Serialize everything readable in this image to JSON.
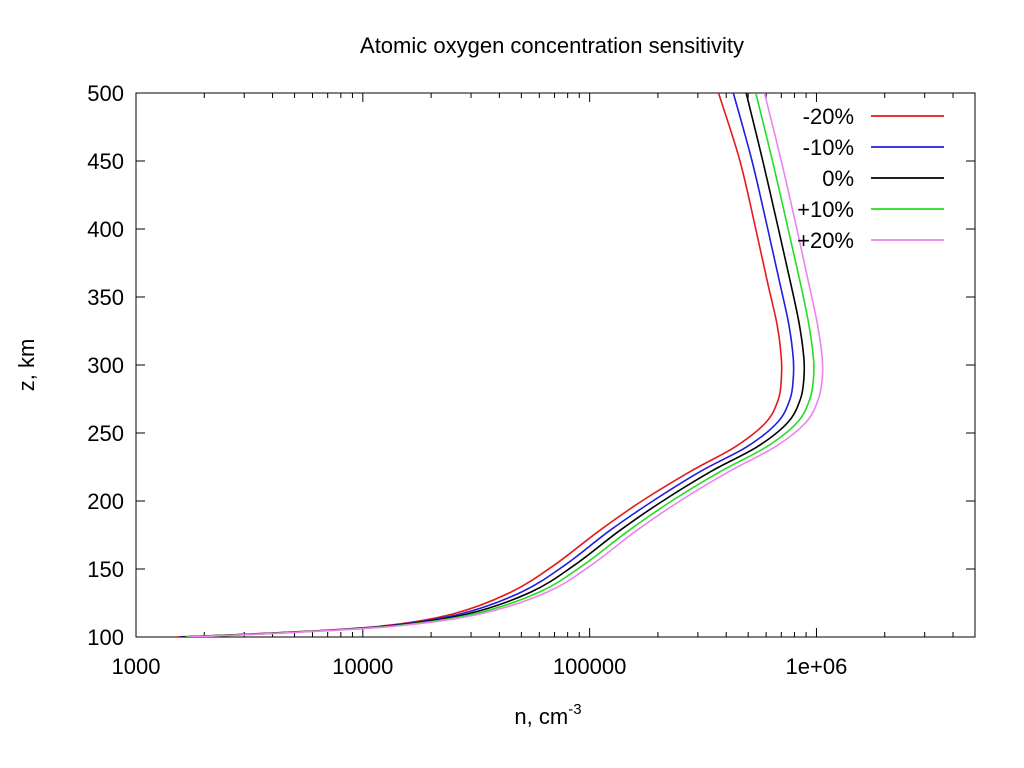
{
  "chart_data": {
    "type": "line",
    "title": "Atomic oxygen concentration sensitivity",
    "xlabel": "n, cm",
    "xlabel_sup": "-3",
    "ylabel": "z, km",
    "x_scale": "log",
    "xlim": [
      1000,
      5000000
    ],
    "ylim": [
      100,
      500
    ],
    "x_ticks": [
      {
        "value": 1000,
        "label": "1000"
      },
      {
        "value": 10000,
        "label": "10000"
      },
      {
        "value": 100000,
        "label": "100000"
      },
      {
        "value": 1000000,
        "label": "1e+06"
      }
    ],
    "y_ticks": [
      {
        "value": 100,
        "label": "100"
      },
      {
        "value": 150,
        "label": "150"
      },
      {
        "value": 200,
        "label": "200"
      },
      {
        "value": 250,
        "label": "250"
      },
      {
        "value": 300,
        "label": "300"
      },
      {
        "value": 350,
        "label": "350"
      },
      {
        "value": 400,
        "label": "400"
      },
      {
        "value": 450,
        "label": "450"
      },
      {
        "value": 500,
        "label": "500"
      }
    ],
    "grid": false,
    "legend_position": "top-right",
    "series": [
      {
        "name": "-20%",
        "color": "#e41a1c",
        "points": [
          [
            1500,
            100
          ],
          [
            4000,
            103
          ],
          [
            12000,
            108
          ],
          [
            25000,
            117
          ],
          [
            45000,
            133
          ],
          [
            70000,
            153
          ],
          [
            110000,
            178
          ],
          [
            170000,
            200
          ],
          [
            280000,
            222
          ],
          [
            440000,
            240
          ],
          [
            600000,
            258
          ],
          [
            680000,
            275
          ],
          [
            700000,
            290
          ],
          [
            700000,
            305
          ],
          [
            670000,
            330
          ],
          [
            610000,
            360
          ],
          [
            540000,
            400
          ],
          [
            460000,
            450
          ],
          [
            370000,
            500
          ]
        ]
      },
      {
        "name": "-10%",
        "color": "#1f1fdf",
        "points": [
          [
            1550,
            100
          ],
          [
            4200,
            103
          ],
          [
            12500,
            108
          ],
          [
            27000,
            117
          ],
          [
            50000,
            133
          ],
          [
            78000,
            153
          ],
          [
            122000,
            178
          ],
          [
            190000,
            200
          ],
          [
            310000,
            222
          ],
          [
            495000,
            240
          ],
          [
            675000,
            258
          ],
          [
            765000,
            275
          ],
          [
            790000,
            290
          ],
          [
            790000,
            305
          ],
          [
            755000,
            330
          ],
          [
            690000,
            360
          ],
          [
            610000,
            400
          ],
          [
            520000,
            450
          ],
          [
            430000,
            500
          ]
        ]
      },
      {
        "name": "0%",
        "color": "#000000",
        "points": [
          [
            1600,
            100
          ],
          [
            4300,
            103
          ],
          [
            13000,
            108
          ],
          [
            29000,
            117
          ],
          [
            55000,
            133
          ],
          [
            86000,
            153
          ],
          [
            135000,
            178
          ],
          [
            210000,
            200
          ],
          [
            345000,
            222
          ],
          [
            550000,
            240
          ],
          [
            750000,
            258
          ],
          [
            850000,
            275
          ],
          [
            880000,
            290
          ],
          [
            880000,
            305
          ],
          [
            840000,
            330
          ],
          [
            770000,
            360
          ],
          [
            680000,
            400
          ],
          [
            580000,
            450
          ],
          [
            490000,
            500
          ]
        ]
      },
      {
        "name": "+10%",
        "color": "#22dd22",
        "points": [
          [
            1650,
            100
          ],
          [
            4400,
            103
          ],
          [
            13500,
            108
          ],
          [
            31000,
            117
          ],
          [
            60000,
            133
          ],
          [
            94000,
            153
          ],
          [
            148000,
            178
          ],
          [
            230000,
            200
          ],
          [
            380000,
            222
          ],
          [
            605000,
            240
          ],
          [
            825000,
            258
          ],
          [
            935000,
            275
          ],
          [
            970000,
            290
          ],
          [
            970000,
            305
          ],
          [
            925000,
            330
          ],
          [
            850000,
            360
          ],
          [
            750000,
            400
          ],
          [
            640000,
            450
          ],
          [
            540000,
            500
          ]
        ]
      },
      {
        "name": "+20%",
        "color": "#ee82ee",
        "points": [
          [
            1700,
            100
          ],
          [
            4500,
            103
          ],
          [
            14000,
            108
          ],
          [
            33000,
            117
          ],
          [
            65000,
            133
          ],
          [
            102000,
            153
          ],
          [
            160000,
            178
          ],
          [
            250000,
            200
          ],
          [
            415000,
            222
          ],
          [
            660000,
            240
          ],
          [
            900000,
            258
          ],
          [
            1020000,
            275
          ],
          [
            1060000,
            290
          ],
          [
            1060000,
            305
          ],
          [
            1010000,
            330
          ],
          [
            925000,
            360
          ],
          [
            820000,
            400
          ],
          [
            700000,
            450
          ],
          [
            590000,
            500
          ]
        ]
      }
    ]
  }
}
